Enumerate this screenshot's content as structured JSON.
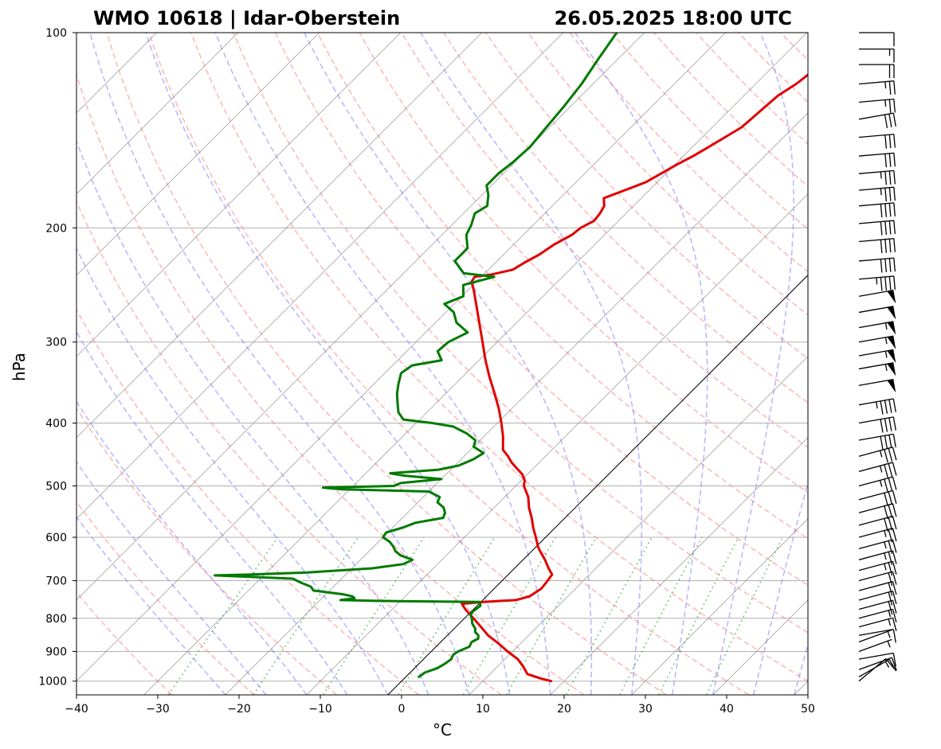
{
  "chart_data": {
    "type": "line",
    "title_left": "WMO 10618 | Idar-Oberstein",
    "title_right": "26.05.2025 18:00 UTC",
    "xlabel": "°C",
    "ylabel": "hPa",
    "xlim": [
      -40,
      50
    ],
    "ylim": [
      1050,
      100
    ],
    "x_ticks": [
      -40,
      -30,
      -20,
      -10,
      0,
      10,
      20,
      30,
      40,
      50
    ],
    "y_ticks": [
      100,
      200,
      300,
      400,
      500,
      600,
      700,
      800,
      900,
      1000
    ],
    "y_scale": "log",
    "skew": "45°",
    "grid": true,
    "colors": {
      "temperature": "#e00000",
      "dewpoint": "#007a00",
      "dry_adiabats": "#ff8080",
      "moist_adiabats": "#8080ff",
      "mixing_ratio": "#2ca02c",
      "isotherm": "#808080",
      "zero_isotherm": "#000000",
      "grid": "#b0b0b0"
    },
    "series": [
      {
        "data": [
          [
            1000,
            18.4
          ],
          [
            990,
            16.7
          ],
          [
            975,
            14.6
          ],
          [
            950,
            13.2
          ],
          [
            925,
            11.6
          ],
          [
            900,
            9.4
          ],
          [
            875,
            7.3
          ],
          [
            850,
            5.0
          ],
          [
            825,
            3.1
          ],
          [
            800,
            1.1
          ],
          [
            775,
            -1.0
          ],
          [
            760,
            -2.1
          ],
          [
            755,
            0.3
          ],
          [
            752,
            2.4
          ],
          [
            750,
            4.1
          ],
          [
            740,
            5.3
          ],
          [
            720,
            5.8
          ],
          [
            700,
            5.6
          ],
          [
            685,
            5.4
          ],
          [
            670,
            4.2
          ],
          [
            650,
            2.7
          ],
          [
            630,
            1.0
          ],
          [
            620,
            0.2
          ],
          [
            600,
            -1.2
          ],
          [
            580,
            -2.7
          ],
          [
            560,
            -4.1
          ],
          [
            540,
            -5.7
          ],
          [
            520,
            -7.1
          ],
          [
            500,
            -9.0
          ],
          [
            490,
            -9.6
          ],
          [
            480,
            -10.6
          ],
          [
            470,
            -12.0
          ],
          [
            460,
            -13.4
          ],
          [
            450,
            -14.6
          ],
          [
            440,
            -16.0
          ],
          [
            420,
            -17.6
          ],
          [
            400,
            -19.5
          ],
          [
            380,
            -21.6
          ],
          [
            360,
            -24.0
          ],
          [
            340,
            -26.6
          ],
          [
            320,
            -29.2
          ],
          [
            300,
            -31.8
          ],
          [
            280,
            -34.6
          ],
          [
            260,
            -37.6
          ],
          [
            250,
            -39.2
          ],
          [
            242,
            -40.6
          ],
          [
            238,
            -40.8
          ],
          [
            236,
            -39.0
          ],
          [
            232,
            -37.0
          ],
          [
            226,
            -36.4
          ],
          [
            220,
            -35.6
          ],
          [
            212,
            -35.0
          ],
          [
            205,
            -34.0
          ],
          [
            200,
            -33.8
          ],
          [
            195,
            -33.0
          ],
          [
            190,
            -33.2
          ],
          [
            185,
            -33.6
          ],
          [
            180,
            -34.6
          ],
          [
            175,
            -33.0
          ],
          [
            170,
            -31.4
          ],
          [
            165,
            -30.6
          ],
          [
            160,
            -29.8
          ],
          [
            155,
            -28.8
          ],
          [
            150,
            -28.0
          ],
          [
            145,
            -27.2
          ],
          [
            140,
            -26.4
          ],
          [
            135,
            -26.2
          ],
          [
            130,
            -26.0
          ],
          [
            125,
            -25.8
          ],
          [
            120,
            -25.0
          ],
          [
            115,
            -24.6
          ],
          [
            110,
            -24.2
          ],
          [
            105,
            -23.6
          ],
          [
            100,
            -23.0
          ]
        ]
      },
      {
        "data": [
          [
            985,
            1.6
          ],
          [
            970,
            1.8
          ],
          [
            955,
            2.8
          ],
          [
            940,
            3.2
          ],
          [
            925,
            3.4
          ],
          [
            910,
            3.1
          ],
          [
            900,
            3.3
          ],
          [
            885,
            4.1
          ],
          [
            870,
            3.8
          ],
          [
            860,
            4.2
          ],
          [
            850,
            3.8
          ],
          [
            840,
            3.0
          ],
          [
            830,
            2.6
          ],
          [
            815,
            1.6
          ],
          [
            800,
            0.9
          ],
          [
            790,
            0.3
          ],
          [
            780,
            0.2
          ],
          [
            765,
            0.4
          ],
          [
            755,
            -0.1
          ],
          [
            753,
            -9.0
          ],
          [
            752,
            -13.0
          ],
          [
            750,
            -17.5
          ],
          [
            745,
            -16.0
          ],
          [
            740,
            -16.5
          ],
          [
            735,
            -17.8
          ],
          [
            725,
            -22.0
          ],
          [
            715,
            -22.8
          ],
          [
            705,
            -24.5
          ],
          [
            695,
            -26.0
          ],
          [
            687,
            -36.0
          ],
          [
            685,
            -32.0
          ],
          [
            680,
            -25.0
          ],
          [
            670,
            -17.5
          ],
          [
            660,
            -14.2
          ],
          [
            650,
            -13.6
          ],
          [
            640,
            -15.6
          ],
          [
            630,
            -16.8
          ],
          [
            620,
            -17.6
          ],
          [
            610,
            -18.6
          ],
          [
            600,
            -20.0
          ],
          [
            590,
            -20.2
          ],
          [
            580,
            -18.8
          ],
          [
            570,
            -17.8
          ],
          [
            560,
            -15.0
          ],
          [
            550,
            -15.4
          ],
          [
            540,
            -16.2
          ],
          [
            530,
            -17.6
          ],
          [
            520,
            -18.0
          ],
          [
            510,
            -20.0
          ],
          [
            506,
            -31.0
          ],
          [
            503,
            -33.5
          ],
          [
            500,
            -25.0
          ],
          [
            495,
            -24.5
          ],
          [
            488,
            -20.0
          ],
          [
            482,
            -25.0
          ],
          [
            478,
            -27.0
          ],
          [
            472,
            -21.5
          ],
          [
            465,
            -19.5
          ],
          [
            455,
            -18.5
          ],
          [
            445,
            -18.0
          ],
          [
            435,
            -20.0
          ],
          [
            425,
            -20.6
          ],
          [
            415,
            -22.5
          ],
          [
            405,
            -25.0
          ],
          [
            400,
            -28.0
          ],
          [
            395,
            -32.0
          ],
          [
            385,
            -33.5
          ],
          [
            372,
            -34.8
          ],
          [
            360,
            -36.0
          ],
          [
            348,
            -37.0
          ],
          [
            335,
            -38.0
          ],
          [
            326,
            -37.6
          ],
          [
            320,
            -34.6
          ],
          [
            310,
            -36.2
          ],
          [
            300,
            -36.0
          ],
          [
            290,
            -34.8
          ],
          [
            280,
            -37.4
          ],
          [
            270,
            -39.0
          ],
          [
            262,
            -41.2
          ],
          [
            255,
            -39.8
          ],
          [
            245,
            -41.2
          ],
          [
            238,
            -38.4
          ],
          [
            235,
            -42.6
          ],
          [
            225,
            -45.2
          ],
          [
            215,
            -45.2
          ],
          [
            205,
            -47.0
          ],
          [
            198,
            -47.6
          ],
          [
            190,
            -48.6
          ],
          [
            185,
            -48.0
          ],
          [
            178,
            -49.2
          ],
          [
            172,
            -50.6
          ],
          [
            165,
            -50.6
          ],
          [
            158,
            -50.2
          ],
          [
            150,
            -50.0
          ],
          [
            140,
            -50.4
          ],
          [
            130,
            -50.8
          ],
          [
            120,
            -51.4
          ],
          [
            110,
            -52.4
          ],
          [
            100,
            -53.4
          ]
        ]
      }
    ],
    "wind_barbs": [
      {
        "p": 1000,
        "dir": 230,
        "spd": 12
      },
      {
        "p": 985,
        "dir": 240,
        "spd": 14
      },
      {
        "p": 960,
        "dir": 250,
        "spd": 12
      },
      {
        "p": 925,
        "dir": 260,
        "spd": 8
      },
      {
        "p": 900,
        "dir": 250,
        "spd": 6
      },
      {
        "p": 870,
        "dir": 250,
        "spd": 4
      },
      {
        "p": 850,
        "dir": 260,
        "spd": 10
      },
      {
        "p": 825,
        "dir": 255,
        "spd": 13
      },
      {
        "p": 800,
        "dir": 255,
        "spd": 15
      },
      {
        "p": 775,
        "dir": 255,
        "spd": 18
      },
      {
        "p": 750,
        "dir": 255,
        "spd": 20
      },
      {
        "p": 725,
        "dir": 255,
        "spd": 20
      },
      {
        "p": 700,
        "dir": 255,
        "spd": 22
      },
      {
        "p": 675,
        "dir": 255,
        "spd": 23
      },
      {
        "p": 650,
        "dir": 255,
        "spd": 25
      },
      {
        "p": 625,
        "dir": 255,
        "spd": 25
      },
      {
        "p": 600,
        "dir": 255,
        "spd": 27
      },
      {
        "p": 575,
        "dir": 255,
        "spd": 28
      },
      {
        "p": 550,
        "dir": 255,
        "spd": 30
      },
      {
        "p": 525,
        "dir": 255,
        "spd": 32
      },
      {
        "p": 500,
        "dir": 255,
        "spd": 35
      },
      {
        "p": 475,
        "dir": 255,
        "spd": 35
      },
      {
        "p": 450,
        "dir": 255,
        "spd": 37
      },
      {
        "p": 425,
        "dir": 260,
        "spd": 40
      },
      {
        "p": 400,
        "dir": 260,
        "spd": 42
      },
      {
        "p": 375,
        "dir": 260,
        "spd": 45
      },
      {
        "p": 350,
        "dir": 260,
        "spd": 50
      },
      {
        "p": 330,
        "dir": 260,
        "spd": 55
      },
      {
        "p": 315,
        "dir": 260,
        "spd": 57
      },
      {
        "p": 300,
        "dir": 260,
        "spd": 55
      },
      {
        "p": 285,
        "dir": 260,
        "spd": 55
      },
      {
        "p": 270,
        "dir": 260,
        "spd": 52
      },
      {
        "p": 255,
        "dir": 260,
        "spd": 50
      },
      {
        "p": 240,
        "dir": 265,
        "spd": 45
      },
      {
        "p": 225,
        "dir": 265,
        "spd": 40
      },
      {
        "p": 210,
        "dir": 265,
        "spd": 40
      },
      {
        "p": 197,
        "dir": 265,
        "spd": 40
      },
      {
        "p": 185,
        "dir": 265,
        "spd": 38
      },
      {
        "p": 175,
        "dir": 265,
        "spd": 35
      },
      {
        "p": 165,
        "dir": 265,
        "spd": 35
      },
      {
        "p": 155,
        "dir": 265,
        "spd": 32
      },
      {
        "p": 145,
        "dir": 265,
        "spd": 30
      },
      {
        "p": 136,
        "dir": 260,
        "spd": 28
      },
      {
        "p": 128,
        "dir": 265,
        "spd": 25
      },
      {
        "p": 120,
        "dir": 265,
        "spd": 25
      },
      {
        "p": 112,
        "dir": 270,
        "spd": 20
      },
      {
        "p": 106,
        "dir": 270,
        "spd": 15
      },
      {
        "p": 100,
        "dir": 270,
        "spd": 10
      }
    ]
  }
}
